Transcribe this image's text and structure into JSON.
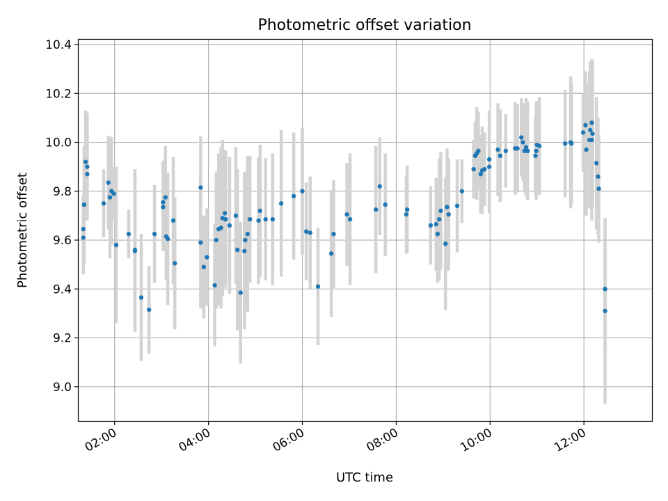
{
  "chart_data": {
    "type": "scatter",
    "title": "Photometric offset variation",
    "xlabel": "UTC time",
    "ylabel": "Photometric offset",
    "xlim": [
      "01:14",
      "13:27"
    ],
    "ylim": [
      8.86,
      10.42
    ],
    "x_ticks": [
      "02:00",
      "04:00",
      "06:00",
      "08:00",
      "10:00",
      "12:00"
    ],
    "y_ticks": [
      "9.0",
      "9.2",
      "9.4",
      "9.6",
      "9.8",
      "10.0",
      "10.2",
      "10.4"
    ],
    "grid": true,
    "colors": {
      "point": "#1f77b4",
      "errorbar": "#d3d3d3",
      "grid": "#b0b0b0"
    },
    "points": [
      {
        "x": "01:20",
        "y": 9.61,
        "err": 0.15
      },
      {
        "x": "01:20",
        "y": 9.645,
        "err": 0.14
      },
      {
        "x": "01:21",
        "y": 9.745,
        "err": 0.24
      },
      {
        "x": "01:23",
        "y": 9.92,
        "err": 0.21
      },
      {
        "x": "01:25",
        "y": 9.9,
        "err": 0.22
      },
      {
        "x": "01:25",
        "y": 9.87,
        "err": 0.16
      },
      {
        "x": "01:46",
        "y": 9.75,
        "err": 0.14
      },
      {
        "x": "01:52",
        "y": 9.835,
        "err": 0.19
      },
      {
        "x": "01:54",
        "y": 9.775,
        "err": 0.25
      },
      {
        "x": "01:56",
        "y": 9.8,
        "err": 0.22
      },
      {
        "x": "01:59",
        "y": 9.79,
        "err": 0.11
      },
      {
        "x": "02:02",
        "y": 9.58,
        "err": 0.32
      },
      {
        "x": "02:18",
        "y": 9.625,
        "err": 0.1
      },
      {
        "x": "02:26",
        "y": 9.56,
        "err": 0.33
      },
      {
        "x": "02:26",
        "y": 9.555,
        "err": 0.33
      },
      {
        "x": "02:34",
        "y": 9.365,
        "err": 0.26
      },
      {
        "x": "02:44",
        "y": 9.315,
        "err": 0.18
      },
      {
        "x": "02:51",
        "y": 9.625,
        "err": 0.2
      },
      {
        "x": "03:02",
        "y": 9.755,
        "err": 0.17
      },
      {
        "x": "03:02",
        "y": 9.735,
        "err": 0.18
      },
      {
        "x": "03:05",
        "y": 9.775,
        "err": 0.21
      },
      {
        "x": "03:06",
        "y": 9.615,
        "err": 0.18
      },
      {
        "x": "03:08",
        "y": 9.605,
        "err": 0.27
      },
      {
        "x": "03:15",
        "y": 9.68,
        "err": 0.26
      },
      {
        "x": "03:17",
        "y": 9.505,
        "err": 0.27
      },
      {
        "x": "03:50",
        "y": 9.815,
        "err": 0.21
      },
      {
        "x": "03:50",
        "y": 9.59,
        "err": 0.27
      },
      {
        "x": "03:54",
        "y": 9.49,
        "err": 0.21
      },
      {
        "x": "03:58",
        "y": 9.53,
        "err": 0.2
      },
      {
        "x": "04:08",
        "y": 9.415,
        "err": 0.25
      },
      {
        "x": "04:10",
        "y": 9.6,
        "err": 0.28
      },
      {
        "x": "04:13",
        "y": 9.645,
        "err": 0.31
      },
      {
        "x": "04:16",
        "y": 9.65,
        "err": 0.33
      },
      {
        "x": "04:18",
        "y": 9.69,
        "err": 0.32
      },
      {
        "x": "04:21",
        "y": 9.71,
        "err": 0.26
      },
      {
        "x": "04:22",
        "y": 9.685,
        "err": 0.28
      },
      {
        "x": "04:27",
        "y": 9.66,
        "err": 0.28
      },
      {
        "x": "04:35",
        "y": 9.7,
        "err": 0.28
      },
      {
        "x": "04:37",
        "y": 9.56,
        "err": 0.33
      },
      {
        "x": "04:41",
        "y": 9.385,
        "err": 0.29
      },
      {
        "x": "04:46",
        "y": 9.555,
        "err": 0.32
      },
      {
        "x": "04:47",
        "y": 9.6,
        "err": 0.28
      },
      {
        "x": "04:50",
        "y": 9.625,
        "err": 0.32
      },
      {
        "x": "04:53",
        "y": 9.685,
        "err": 0.26
      },
      {
        "x": "05:04",
        "y": 9.68,
        "err": 0.26
      },
      {
        "x": "05:06",
        "y": 9.72,
        "err": 0.27
      },
      {
        "x": "05:13",
        "y": 9.685,
        "err": 0.25
      },
      {
        "x": "05:22",
        "y": 9.685,
        "err": 0.27
      },
      {
        "x": "05:33",
        "y": 9.75,
        "err": 0.3
      },
      {
        "x": "05:49",
        "y": 9.78,
        "err": 0.26
      },
      {
        "x": "06:00",
        "y": 9.8,
        "err": 0.26
      },
      {
        "x": "06:05",
        "y": 9.635,
        "err": 0.2
      },
      {
        "x": "06:10",
        "y": 9.63,
        "err": 0.23
      },
      {
        "x": "06:20",
        "y": 9.41,
        "err": 0.24
      },
      {
        "x": "06:37",
        "y": 9.545,
        "err": 0.26
      },
      {
        "x": "06:40",
        "y": 9.625,
        "err": 0.22
      },
      {
        "x": "06:57",
        "y": 9.705,
        "err": 0.21
      },
      {
        "x": "07:01",
        "y": 9.685,
        "err": 0.27
      },
      {
        "x": "07:34",
        "y": 9.725,
        "err": 0.26
      },
      {
        "x": "07:39",
        "y": 9.82,
        "err": 0.2
      },
      {
        "x": "07:46",
        "y": 9.745,
        "err": 0.21
      },
      {
        "x": "08:13",
        "y": 9.705,
        "err": 0.16
      },
      {
        "x": "08:14",
        "y": 9.725,
        "err": 0.18
      },
      {
        "x": "08:44",
        "y": 9.66,
        "err": 0.16
      },
      {
        "x": "08:51",
        "y": 9.665,
        "err": 0.19
      },
      {
        "x": "08:53",
        "y": 9.625,
        "err": 0.2
      },
      {
        "x": "08:55",
        "y": 9.685,
        "err": 0.25
      },
      {
        "x": "08:57",
        "y": 9.72,
        "err": 0.24
      },
      {
        "x": "09:03",
        "y": 9.585,
        "err": 0.27
      },
      {
        "x": "09:05",
        "y": 9.735,
        "err": 0.24
      },
      {
        "x": "09:07",
        "y": 9.705,
        "err": 0.23
      },
      {
        "x": "09:18",
        "y": 9.74,
        "err": 0.19
      },
      {
        "x": "09:24",
        "y": 9.8,
        "err": 0.13
      },
      {
        "x": "09:39",
        "y": 9.89,
        "err": 0.12
      },
      {
        "x": "09:41",
        "y": 9.945,
        "err": 0.14
      },
      {
        "x": "09:43",
        "y": 9.955,
        "err": 0.19
      },
      {
        "x": "09:45",
        "y": 9.965,
        "err": 0.16
      },
      {
        "x": "09:48",
        "y": 9.87,
        "err": 0.16
      },
      {
        "x": "09:50",
        "y": 9.885,
        "err": 0.18
      },
      {
        "x": "09:53",
        "y": 9.89,
        "err": 0.15
      },
      {
        "x": "09:59",
        "y": 9.93,
        "err": 0.2
      },
      {
        "x": "09:59",
        "y": 9.9,
        "err": 0.19
      },
      {
        "x": "10:10",
        "y": 9.97,
        "err": 0.19
      },
      {
        "x": "10:13",
        "y": 9.945,
        "err": 0.19
      },
      {
        "x": "10:20",
        "y": 9.965,
        "err": 0.15
      },
      {
        "x": "10:32",
        "y": 9.975,
        "err": 0.19
      },
      {
        "x": "10:35",
        "y": 9.975,
        "err": 0.18
      },
      {
        "x": "10:40",
        "y": 10.02,
        "err": 0.16
      },
      {
        "x": "10:42",
        "y": 10.0,
        "err": 0.16
      },
      {
        "x": "10:44",
        "y": 9.965,
        "err": 0.17
      },
      {
        "x": "10:46",
        "y": 9.98,
        "err": 0.2
      },
      {
        "x": "10:48",
        "y": 9.965,
        "err": 0.2
      },
      {
        "x": "10:58",
        "y": 9.945,
        "err": 0.16
      },
      {
        "x": "10:59",
        "y": 9.965,
        "err": 0.2
      },
      {
        "x": "11:00",
        "y": 9.99,
        "err": 0.18
      },
      {
        "x": "11:03",
        "y": 9.985,
        "err": 0.2
      },
      {
        "x": "11:36",
        "y": 9.995,
        "err": 0.22
      },
      {
        "x": "11:43",
        "y": 10.0,
        "err": 0.27
      },
      {
        "x": "11:44",
        "y": 9.995,
        "err": 0.25
      },
      {
        "x": "11:59",
        "y": 10.04,
        "err": 0.16
      },
      {
        "x": "12:02",
        "y": 10.07,
        "err": 0.22
      },
      {
        "x": "12:03",
        "y": 9.97,
        "err": 0.27
      },
      {
        "x": "12:07",
        "y": 10.01,
        "err": 0.28
      },
      {
        "x": "12:08",
        "y": 10.05,
        "err": 0.28
      },
      {
        "x": "12:10",
        "y": 10.08,
        "err": 0.25
      },
      {
        "x": "12:10",
        "y": 10.01,
        "err": 0.33
      },
      {
        "x": "12:11",
        "y": 10.035,
        "err": 0.3
      },
      {
        "x": "12:16",
        "y": 9.915,
        "err": 0.27
      },
      {
        "x": "12:18",
        "y": 9.86,
        "err": 0.24
      },
      {
        "x": "12:19",
        "y": 9.81,
        "err": 0.22
      },
      {
        "x": "12:27",
        "y": 9.4,
        "err": 0.28
      },
      {
        "x": "12:27",
        "y": 9.31,
        "err": 0.38
      }
    ]
  }
}
